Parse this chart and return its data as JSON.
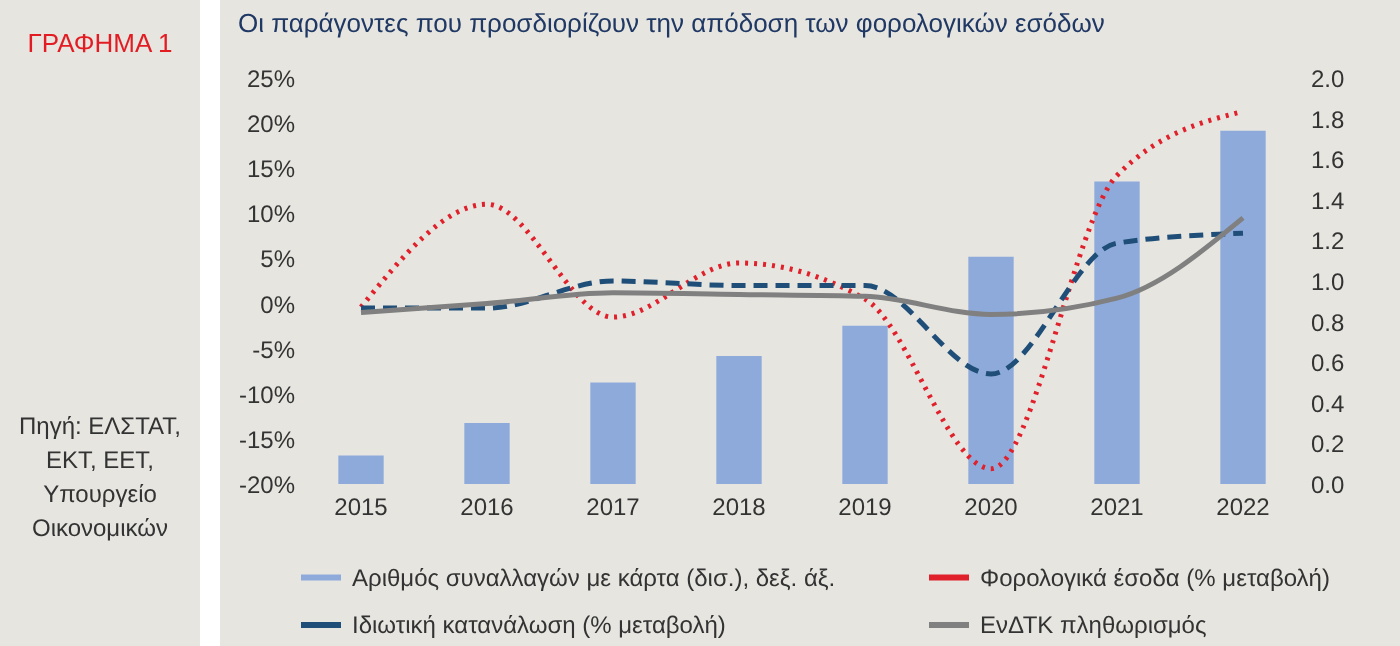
{
  "chart_data": {
    "type": "line",
    "title": "Οι παράγοντες που προσδιορίζουν την απόδοση των φορολογικών εσόδων",
    "annotations": [
      "ΓΡΑΦΗΜΑ 1",
      "Πηγή: ΕΛΣΤΑΤ, ΕΚΤ, ΕΕΤ, Υπουργείο Οικονομικών"
    ],
    "categories": [
      "2015",
      "2016",
      "2017",
      "2018",
      "2019",
      "2020",
      "2021",
      "2022"
    ],
    "series": [
      {
        "name": "Αριθμός συναλλαγών με κάρτα (δισ.), δεξ. άξ.",
        "type": "bar",
        "axis": "y2",
        "color": "#8eaadb",
        "values": [
          0.14,
          0.3,
          0.5,
          0.63,
          0.78,
          1.12,
          1.49,
          1.74
        ]
      },
      {
        "name": "Φορολογικά έσοδα (% μεταβολή)",
        "type": "line",
        "line_style": "dotted",
        "color": "#e0202a",
        "values": [
          -0.4,
          11,
          -1.5,
          4.5,
          0.5,
          -18.3,
          14.2,
          21.3
        ]
      },
      {
        "name": "Ιδιωτική κατανάλωση (% μεταβολή)",
        "type": "line",
        "line_style": "dashed",
        "color": "#1f4e79",
        "values": [
          -0.5,
          -0.5,
          2.5,
          2,
          2,
          -7.8,
          6.7,
          7.8
        ]
      },
      {
        "name": "ΕνΔΤΚ πληθωρισμός",
        "type": "line",
        "line_style": "solid",
        "color": "#808080",
        "values": [
          -1,
          0,
          1.2,
          1,
          0.8,
          -1.2,
          0.6,
          9.5
        ]
      }
    ],
    "ylim": [
      -20,
      25
    ],
    "yticks": [
      {
        "value": -20,
        "label": "-20%"
      },
      {
        "value": -15,
        "label": "-15%"
      },
      {
        "value": -10,
        "label": "-10%"
      },
      {
        "value": -5,
        "label": "-5%"
      },
      {
        "value": 0,
        "label": "0%"
      },
      {
        "value": 5,
        "label": "5%"
      },
      {
        "value": 10,
        "label": "10%"
      },
      {
        "value": 15,
        "label": "15%"
      },
      {
        "value": 20,
        "label": "20%"
      },
      {
        "value": 25,
        "label": "25%"
      }
    ],
    "y2lim": [
      0,
      2
    ],
    "y2ticks": [
      {
        "value": 0,
        "label": "0.0"
      },
      {
        "value": 0.2,
        "label": "0.2"
      },
      {
        "value": 0.4,
        "label": "0.4"
      },
      {
        "value": 0.6,
        "label": "0.6"
      },
      {
        "value": 0.8,
        "label": "0.8"
      },
      {
        "value": 1,
        "label": "1.0"
      },
      {
        "value": 1.2,
        "label": "1.2"
      },
      {
        "value": 1.4,
        "label": "1.4"
      },
      {
        "value": 1.6,
        "label": "1.6"
      },
      {
        "value": 1.8,
        "label": "1.8"
      },
      {
        "value": 2,
        "label": "2.0"
      }
    ],
    "legend": "bottom"
  }
}
